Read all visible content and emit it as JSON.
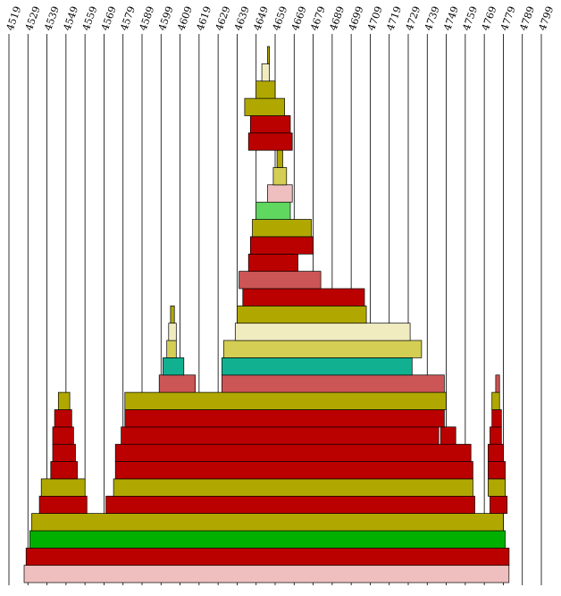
{
  "chart_data": {
    "type": "stacked-bar",
    "orientation": "horizontal-layers",
    "x_tick_labels": [
      "4519",
      "4529",
      "4539",
      "4549",
      "4559",
      "4569",
      "4579",
      "4589",
      "4599",
      "4609",
      "4619",
      "4629",
      "4639",
      "4649",
      "4659",
      "4669",
      "4679",
      "4689",
      "4699",
      "4709",
      "4719",
      "4729",
      "4739",
      "4749",
      "4759",
      "4769",
      "4779",
      "4789",
      "4799"
    ],
    "x_ticks": [
      4519,
      4529,
      4539,
      4549,
      4559,
      4569,
      4579,
      4589,
      4599,
      4609,
      4619,
      4629,
      4639,
      4649,
      4659,
      4669,
      4679,
      4689,
      4699,
      4709,
      4719,
      4729,
      4739,
      4749,
      4759,
      4769,
      4779,
      4789,
      4799
    ],
    "xlim": [
      4519,
      4799
    ],
    "grid": "vertical",
    "colors": {
      "pink": "#efbfbf",
      "green": "#00b000",
      "red": "#bb0000",
      "olive": "#b0a800",
      "rose": "#cc5555",
      "khaki": "#d4ce55",
      "cream": "#f0ecc0",
      "teal": "#10b090",
      "lightgreen": "#60d860"
    },
    "layers": [
      {
        "color": "pink",
        "segments": [
          [
            4527,
            4782
          ]
        ]
      },
      {
        "color": "red",
        "segments": [
          [
            4528,
            4782
          ]
        ]
      },
      {
        "color": "green",
        "segments": [
          [
            4530,
            4780
          ]
        ]
      },
      {
        "color": "olive",
        "segments": [
          [
            4531,
            4779
          ]
        ]
      },
      {
        "color": "red",
        "segments": [
          [
            4535,
            4560
          ],
          [
            4570,
            4764
          ],
          [
            4772,
            4781
          ]
        ]
      },
      {
        "color": "olive",
        "segments": [
          [
            4536,
            4559
          ],
          [
            4574,
            4763
          ],
          [
            4771,
            4780
          ]
        ]
      },
      {
        "color": "red",
        "segments": [
          [
            4541,
            4555
          ],
          [
            4575,
            4763
          ],
          [
            4771,
            4780
          ]
        ]
      },
      {
        "color": "red",
        "segments": [
          [
            4542,
            4554
          ],
          [
            4575,
            4762
          ],
          [
            4771,
            4779
          ]
        ]
      },
      {
        "color": "red",
        "segments": [
          [
            4542,
            4553
          ],
          [
            4578,
            4745
          ],
          [
            4746,
            4754
          ],
          [
            4772,
            4778
          ]
        ]
      },
      {
        "color": "red",
        "segments": [
          [
            4543,
            4552
          ],
          [
            4580,
            4748
          ],
          [
            4773,
            4778
          ]
        ]
      },
      {
        "color": "olive",
        "segments": [
          [
            4545,
            4551
          ],
          [
            4580,
            4749
          ],
          [
            4773,
            4777
          ]
        ]
      },
      {
        "color": "rose",
        "segments": [
          [
            4598,
            4617
          ],
          [
            4631,
            4748
          ],
          [
            4775,
            4777
          ]
        ]
      },
      {
        "color": "teal",
        "segments": [
          [
            4600,
            4611
          ],
          [
            4631,
            4731
          ]
        ]
      },
      {
        "color": "khaki",
        "segments": [
          [
            4602,
            4607
          ],
          [
            4632,
            4736
          ]
        ]
      },
      {
        "color": "cream",
        "segments": [
          [
            4603,
            4607
          ],
          [
            4638,
            4730
          ]
        ]
      },
      {
        "color": "olive",
        "segments": [
          [
            4604,
            4606
          ],
          [
            4639,
            4707
          ]
        ]
      },
      {
        "color": "red",
        "segments": [
          [
            4642,
            4706
          ]
        ]
      },
      {
        "color": "rose",
        "segments": [
          [
            4640,
            4683
          ]
        ]
      },
      {
        "color": "red",
        "segments": [
          [
            4645,
            4671
          ]
        ]
      },
      {
        "color": "red",
        "segments": [
          [
            4646,
            4679
          ]
        ]
      },
      {
        "color": "olive",
        "segments": [
          [
            4647,
            4678
          ]
        ]
      },
      {
        "color": "lightgreen",
        "segments": [
          [
            4649,
            4667
          ]
        ]
      },
      {
        "color": "pink",
        "segments": [
          [
            4655,
            4668
          ]
        ]
      },
      {
        "color": "khaki",
        "segments": [
          [
            4658,
            4665
          ]
        ]
      },
      {
        "color": "olive",
        "segments": [
          [
            4660,
            4663
          ]
        ]
      },
      {
        "color": "red",
        "segments": [
          [
            4645,
            4668
          ]
        ]
      },
      {
        "color": "red",
        "segments": [
          [
            4646,
            4667
          ]
        ]
      },
      {
        "color": "olive",
        "segments": [
          [
            4643,
            4664
          ]
        ]
      },
      {
        "color": "olive",
        "segments": [
          [
            4649,
            4659
          ]
        ]
      },
      {
        "color": "cream",
        "segments": [
          [
            4652,
            4656
          ]
        ]
      },
      {
        "color": "olive",
        "segments": [
          [
            4655,
            4656
          ]
        ]
      }
    ]
  }
}
